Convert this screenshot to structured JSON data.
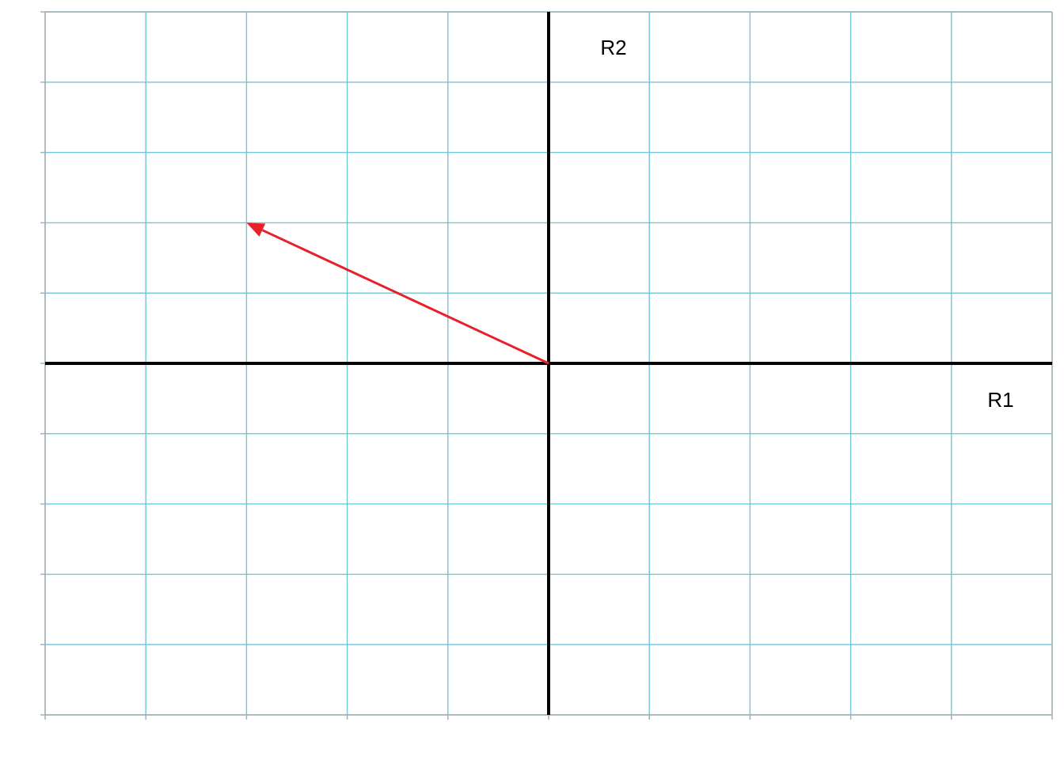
{
  "chart_data": {
    "type": "scatter",
    "title": "",
    "xlabel": "R1",
    "ylabel": "R2",
    "xlim": [
      -5,
      5
    ],
    "ylim": [
      -5,
      5
    ],
    "grid": true,
    "x_ticks": [
      -5,
      -4,
      -3,
      -2,
      -1,
      0,
      1,
      2,
      3,
      4,
      5
    ],
    "y_ticks": [
      -5,
      -4,
      -3,
      -2,
      -1,
      0,
      1,
      2,
      3,
      4,
      5
    ],
    "vectors": [
      {
        "from": [
          0,
          0
        ],
        "to": [
          -3,
          2
        ],
        "color": "#e8202a"
      }
    ],
    "colors": {
      "grid": "#6ec6d6",
      "axis": "#000000",
      "frame": "#a9b0b4",
      "vector": "#e8202a"
    }
  }
}
